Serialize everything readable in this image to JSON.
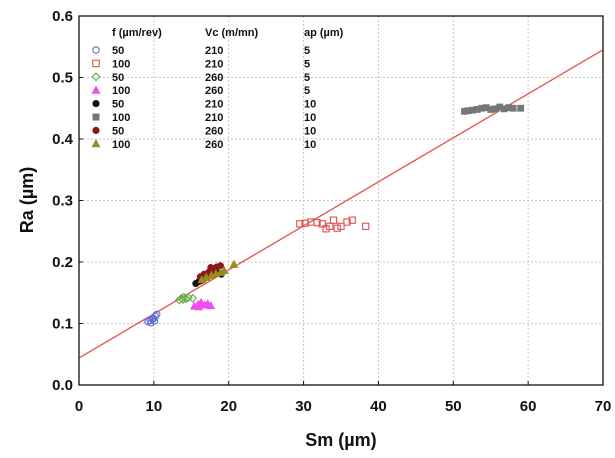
{
  "chart_data": {
    "type": "scatter",
    "title": "",
    "xlabel": "Sm (µm)",
    "ylabel": "Ra (µm)",
    "xlim": [
      0,
      70
    ],
    "ylim": [
      0.0,
      0.6
    ],
    "x_ticks": [
      "0",
      "10",
      "20",
      "30",
      "40",
      "50",
      "60",
      "70"
    ],
    "y_ticks": [
      "0.0",
      "0.1",
      "0.2",
      "0.3",
      "0.4",
      "0.5",
      "0.6"
    ],
    "grid": true,
    "legend_position": "top-left",
    "legend_headers": [
      "f (µm/rev)",
      "Vc (m/mn)",
      "ap (µm)"
    ],
    "series": [
      {
        "name": "50 210 5",
        "f": "50",
        "vc": "210",
        "ap": "5",
        "marker": "circle-open",
        "color": "#5b6fd6",
        "points": [
          [
            9.2,
            0.103
          ],
          [
            9.5,
            0.105
          ],
          [
            9.8,
            0.107
          ],
          [
            10.0,
            0.108
          ],
          [
            10.2,
            0.112
          ],
          [
            10.4,
            0.115
          ],
          [
            9.6,
            0.101
          ],
          [
            10.1,
            0.104
          ]
        ]
      },
      {
        "name": "100 210 5",
        "f": "100",
        "vc": "210",
        "ap": "5",
        "marker": "square-open",
        "color": "#e05050",
        "points": [
          [
            29.5,
            0.262
          ],
          [
            30.2,
            0.263
          ],
          [
            31.0,
            0.265
          ],
          [
            31.8,
            0.264
          ],
          [
            32.5,
            0.262
          ],
          [
            33.5,
            0.258
          ],
          [
            34.0,
            0.268
          ],
          [
            35.0,
            0.258
          ],
          [
            35.8,
            0.265
          ],
          [
            36.5,
            0.268
          ],
          [
            33.0,
            0.254
          ],
          [
            34.5,
            0.255
          ],
          [
            38.3,
            0.258
          ]
        ]
      },
      {
        "name": "50 260 5",
        "f": "50",
        "vc": "260",
        "ap": "5",
        "marker": "diamond-open",
        "color": "#66aa44",
        "points": [
          [
            13.4,
            0.138
          ],
          [
            13.7,
            0.141
          ],
          [
            14.0,
            0.143
          ],
          [
            14.3,
            0.14
          ],
          [
            14.6,
            0.142
          ],
          [
            15.2,
            0.141
          ],
          [
            13.9,
            0.139
          ]
        ]
      },
      {
        "name": "100 260 5",
        "f": "100",
        "vc": "260",
        "ap": "5",
        "marker": "triangle-filled",
        "color": "#f24cf2",
        "points": [
          [
            15.4,
            0.128
          ],
          [
            15.9,
            0.131
          ],
          [
            16.3,
            0.134
          ],
          [
            16.8,
            0.13
          ],
          [
            17.2,
            0.132
          ],
          [
            17.6,
            0.129
          ],
          [
            16.0,
            0.127
          ]
        ]
      },
      {
        "name": "50 210 10",
        "f": "50",
        "vc": "210",
        "ap": "10",
        "marker": "circle-filled",
        "color": "#111111",
        "points": [
          [
            15.6,
            0.165
          ],
          [
            16.0,
            0.168
          ],
          [
            16.4,
            0.17
          ],
          [
            16.8,
            0.174
          ],
          [
            17.3,
            0.177
          ],
          [
            17.8,
            0.181
          ],
          [
            18.4,
            0.183
          ],
          [
            19.0,
            0.18
          ]
        ]
      },
      {
        "name": "100 210 10",
        "f": "100",
        "vc": "210",
        "ap": "10",
        "marker": "square-filled",
        "color": "#777777",
        "points": [
          [
            51.5,
            0.445
          ],
          [
            52.0,
            0.446
          ],
          [
            52.6,
            0.447
          ],
          [
            53.2,
            0.448
          ],
          [
            53.8,
            0.45
          ],
          [
            54.4,
            0.451
          ],
          [
            55.0,
            0.448
          ],
          [
            55.6,
            0.449
          ],
          [
            56.2,
            0.452
          ],
          [
            56.8,
            0.449
          ],
          [
            57.4,
            0.451
          ],
          [
            58.0,
            0.45
          ],
          [
            59.0,
            0.45
          ]
        ]
      },
      {
        "name": "50 260 10",
        "f": "50",
        "vc": "260",
        "ap": "10",
        "marker": "circle-filled",
        "color": "#8b1a1a",
        "points": [
          [
            16.2,
            0.176
          ],
          [
            16.7,
            0.18
          ],
          [
            17.3,
            0.183
          ],
          [
            17.9,
            0.188
          ],
          [
            18.4,
            0.192
          ],
          [
            18.9,
            0.194
          ],
          [
            17.6,
            0.191
          ]
        ]
      },
      {
        "name": "100 260 10",
        "f": "100",
        "vc": "260",
        "ap": "10",
        "marker": "triangle-filled",
        "color": "#9a8b1f",
        "points": [
          [
            16.4,
            0.171
          ],
          [
            17.0,
            0.175
          ],
          [
            17.7,
            0.178
          ],
          [
            18.3,
            0.181
          ],
          [
            18.9,
            0.183
          ],
          [
            19.4,
            0.186
          ],
          [
            20.7,
            0.196
          ]
        ]
      }
    ],
    "trend_line": {
      "x": [
        0,
        70
      ],
      "y": [
        0.044,
        0.545
      ],
      "color": "#e15b52"
    }
  }
}
